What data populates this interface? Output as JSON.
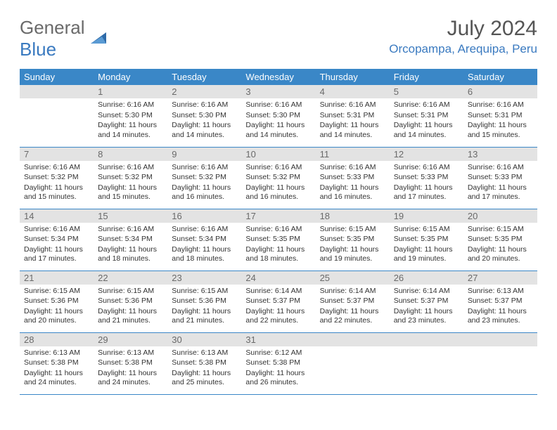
{
  "logo": {
    "line1": "General",
    "line2": "Blue"
  },
  "header": {
    "month": "July 2024",
    "location": "Orcopampa, Arequipa, Peru"
  },
  "colors": {
    "header_bg": "#3a87c7",
    "header_text": "#ffffff",
    "daynum_bg": "#e3e3e3",
    "daynum_text": "#6a6a6a",
    "body_text": "#333333",
    "accent": "#3a7ac0",
    "row_border": "#3a87c7",
    "page_bg": "#ffffff"
  },
  "font": {
    "family": "Arial",
    "day_body_pt": 10.5,
    "header_pt": 13,
    "title_pt": 30
  },
  "weekdays": [
    "Sunday",
    "Monday",
    "Tuesday",
    "Wednesday",
    "Thursday",
    "Friday",
    "Saturday"
  ],
  "weeks": [
    [
      null,
      {
        "n": 1,
        "sunrise": "6:16 AM",
        "sunset": "5:30 PM",
        "daylight": "11 hours and 14 minutes."
      },
      {
        "n": 2,
        "sunrise": "6:16 AM",
        "sunset": "5:30 PM",
        "daylight": "11 hours and 14 minutes."
      },
      {
        "n": 3,
        "sunrise": "6:16 AM",
        "sunset": "5:30 PM",
        "daylight": "11 hours and 14 minutes."
      },
      {
        "n": 4,
        "sunrise": "6:16 AM",
        "sunset": "5:31 PM",
        "daylight": "11 hours and 14 minutes."
      },
      {
        "n": 5,
        "sunrise": "6:16 AM",
        "sunset": "5:31 PM",
        "daylight": "11 hours and 14 minutes."
      },
      {
        "n": 6,
        "sunrise": "6:16 AM",
        "sunset": "5:31 PM",
        "daylight": "11 hours and 15 minutes."
      }
    ],
    [
      {
        "n": 7,
        "sunrise": "6:16 AM",
        "sunset": "5:32 PM",
        "daylight": "11 hours and 15 minutes."
      },
      {
        "n": 8,
        "sunrise": "6:16 AM",
        "sunset": "5:32 PM",
        "daylight": "11 hours and 15 minutes."
      },
      {
        "n": 9,
        "sunrise": "6:16 AM",
        "sunset": "5:32 PM",
        "daylight": "11 hours and 16 minutes."
      },
      {
        "n": 10,
        "sunrise": "6:16 AM",
        "sunset": "5:32 PM",
        "daylight": "11 hours and 16 minutes."
      },
      {
        "n": 11,
        "sunrise": "6:16 AM",
        "sunset": "5:33 PM",
        "daylight": "11 hours and 16 minutes."
      },
      {
        "n": 12,
        "sunrise": "6:16 AM",
        "sunset": "5:33 PM",
        "daylight": "11 hours and 17 minutes."
      },
      {
        "n": 13,
        "sunrise": "6:16 AM",
        "sunset": "5:33 PM",
        "daylight": "11 hours and 17 minutes."
      }
    ],
    [
      {
        "n": 14,
        "sunrise": "6:16 AM",
        "sunset": "5:34 PM",
        "daylight": "11 hours and 17 minutes."
      },
      {
        "n": 15,
        "sunrise": "6:16 AM",
        "sunset": "5:34 PM",
        "daylight": "11 hours and 18 minutes."
      },
      {
        "n": 16,
        "sunrise": "6:16 AM",
        "sunset": "5:34 PM",
        "daylight": "11 hours and 18 minutes."
      },
      {
        "n": 17,
        "sunrise": "6:16 AM",
        "sunset": "5:35 PM",
        "daylight": "11 hours and 18 minutes."
      },
      {
        "n": 18,
        "sunrise": "6:15 AM",
        "sunset": "5:35 PM",
        "daylight": "11 hours and 19 minutes."
      },
      {
        "n": 19,
        "sunrise": "6:15 AM",
        "sunset": "5:35 PM",
        "daylight": "11 hours and 19 minutes."
      },
      {
        "n": 20,
        "sunrise": "6:15 AM",
        "sunset": "5:35 PM",
        "daylight": "11 hours and 20 minutes."
      }
    ],
    [
      {
        "n": 21,
        "sunrise": "6:15 AM",
        "sunset": "5:36 PM",
        "daylight": "11 hours and 20 minutes."
      },
      {
        "n": 22,
        "sunrise": "6:15 AM",
        "sunset": "5:36 PM",
        "daylight": "11 hours and 21 minutes."
      },
      {
        "n": 23,
        "sunrise": "6:15 AM",
        "sunset": "5:36 PM",
        "daylight": "11 hours and 21 minutes."
      },
      {
        "n": 24,
        "sunrise": "6:14 AM",
        "sunset": "5:37 PM",
        "daylight": "11 hours and 22 minutes."
      },
      {
        "n": 25,
        "sunrise": "6:14 AM",
        "sunset": "5:37 PM",
        "daylight": "11 hours and 22 minutes."
      },
      {
        "n": 26,
        "sunrise": "6:14 AM",
        "sunset": "5:37 PM",
        "daylight": "11 hours and 23 minutes."
      },
      {
        "n": 27,
        "sunrise": "6:13 AM",
        "sunset": "5:37 PM",
        "daylight": "11 hours and 23 minutes."
      }
    ],
    [
      {
        "n": 28,
        "sunrise": "6:13 AM",
        "sunset": "5:38 PM",
        "daylight": "11 hours and 24 minutes."
      },
      {
        "n": 29,
        "sunrise": "6:13 AM",
        "sunset": "5:38 PM",
        "daylight": "11 hours and 24 minutes."
      },
      {
        "n": 30,
        "sunrise": "6:13 AM",
        "sunset": "5:38 PM",
        "daylight": "11 hours and 25 minutes."
      },
      {
        "n": 31,
        "sunrise": "6:12 AM",
        "sunset": "5:38 PM",
        "daylight": "11 hours and 26 minutes."
      },
      null,
      null,
      null
    ]
  ],
  "labels": {
    "sunrise": "Sunrise:",
    "sunset": "Sunset:",
    "daylight": "Daylight:"
  }
}
